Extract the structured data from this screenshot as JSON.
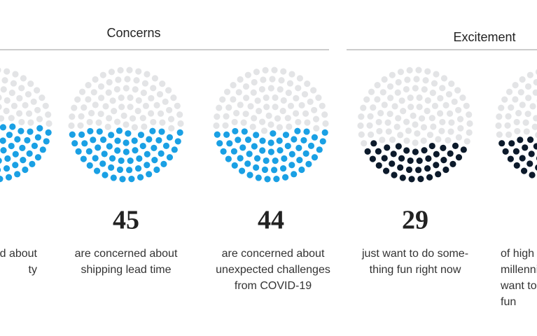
{
  "chart_data": {
    "type": "dot-fill",
    "sections": [
      {
        "title": "Concerns",
        "color": "#1aa0e4",
        "items": [
          {
            "value": 48,
            "lines": [
              "d about",
              "ty"
            ]
          },
          {
            "value": 45,
            "lines": [
              "are concerned about",
              "shipping lead time"
            ]
          },
          {
            "value": 44,
            "lines": [
              "are concerned about",
              "unexpected challenges",
              "from COVID-19"
            ]
          }
        ]
      },
      {
        "title": "Excitement",
        "color": "#0c1a2b",
        "items": [
          {
            "value": 29,
            "lines": [
              "just want to do some-",
              "thing fun right now"
            ]
          },
          {
            "value": 35,
            "lines": [
              "of high",
              "millenni",
              "want to",
              "fun"
            ]
          }
        ]
      }
    ],
    "empty_color": "#e3e4e6"
  }
}
